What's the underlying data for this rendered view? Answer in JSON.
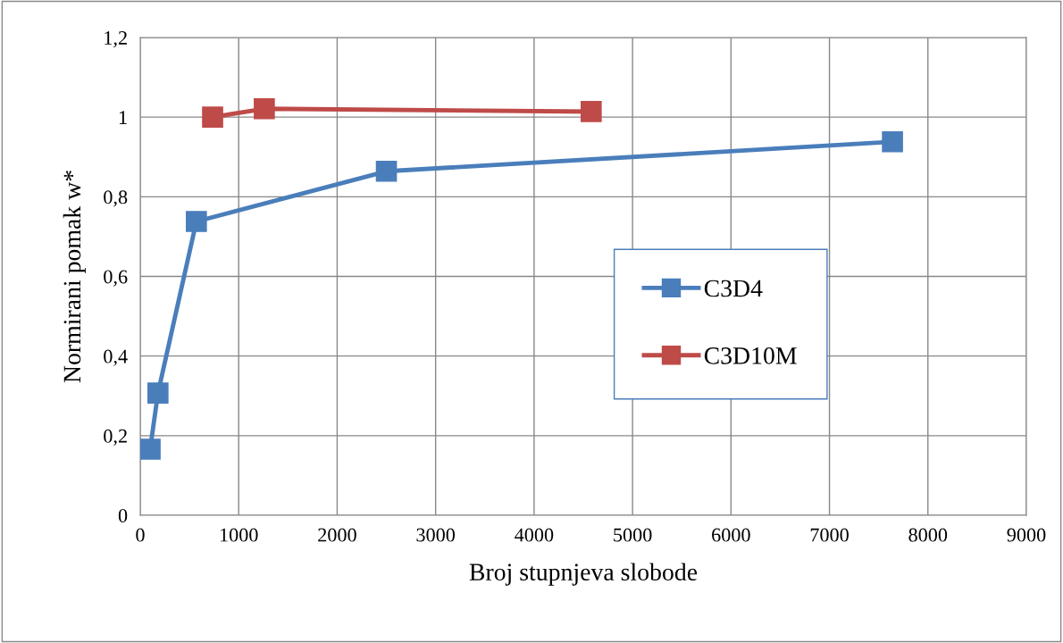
{
  "chart_data": {
    "type": "line",
    "xlabel": "Broj stupnjeva slobode",
    "ylabel": "Normirani pomak w*",
    "xlim": [
      0,
      9000
    ],
    "xticks": [
      0,
      1000,
      2000,
      3000,
      4000,
      5000,
      6000,
      7000,
      8000,
      9000
    ],
    "ylim": [
      0,
      1.2
    ],
    "yticks": [
      {
        "value": 0,
        "label": "0"
      },
      {
        "value": 0.2,
        "label": "0,2"
      },
      {
        "value": 0.4,
        "label": "0,4"
      },
      {
        "value": 0.6,
        "label": "0,6"
      },
      {
        "value": 0.8,
        "label": "0,8"
      },
      {
        "value": 1,
        "label": "1"
      },
      {
        "value": 1.2,
        "label": "1,2"
      }
    ],
    "grid": true,
    "legend": "right",
    "marker": "square",
    "line_style": "solid",
    "series": [
      {
        "name": "C3D4",
        "color": "#4a7ebb",
        "x": [
          100,
          180,
          570,
          2500,
          7640
        ],
        "values": [
          0.166,
          0.307,
          0.738,
          0.864,
          0.938
        ]
      },
      {
        "name": "C3D10M",
        "color": "#be4b48",
        "x": [
          735,
          1260,
          4580
        ],
        "values": [
          1.0,
          1.021,
          1.014
        ]
      }
    ]
  }
}
